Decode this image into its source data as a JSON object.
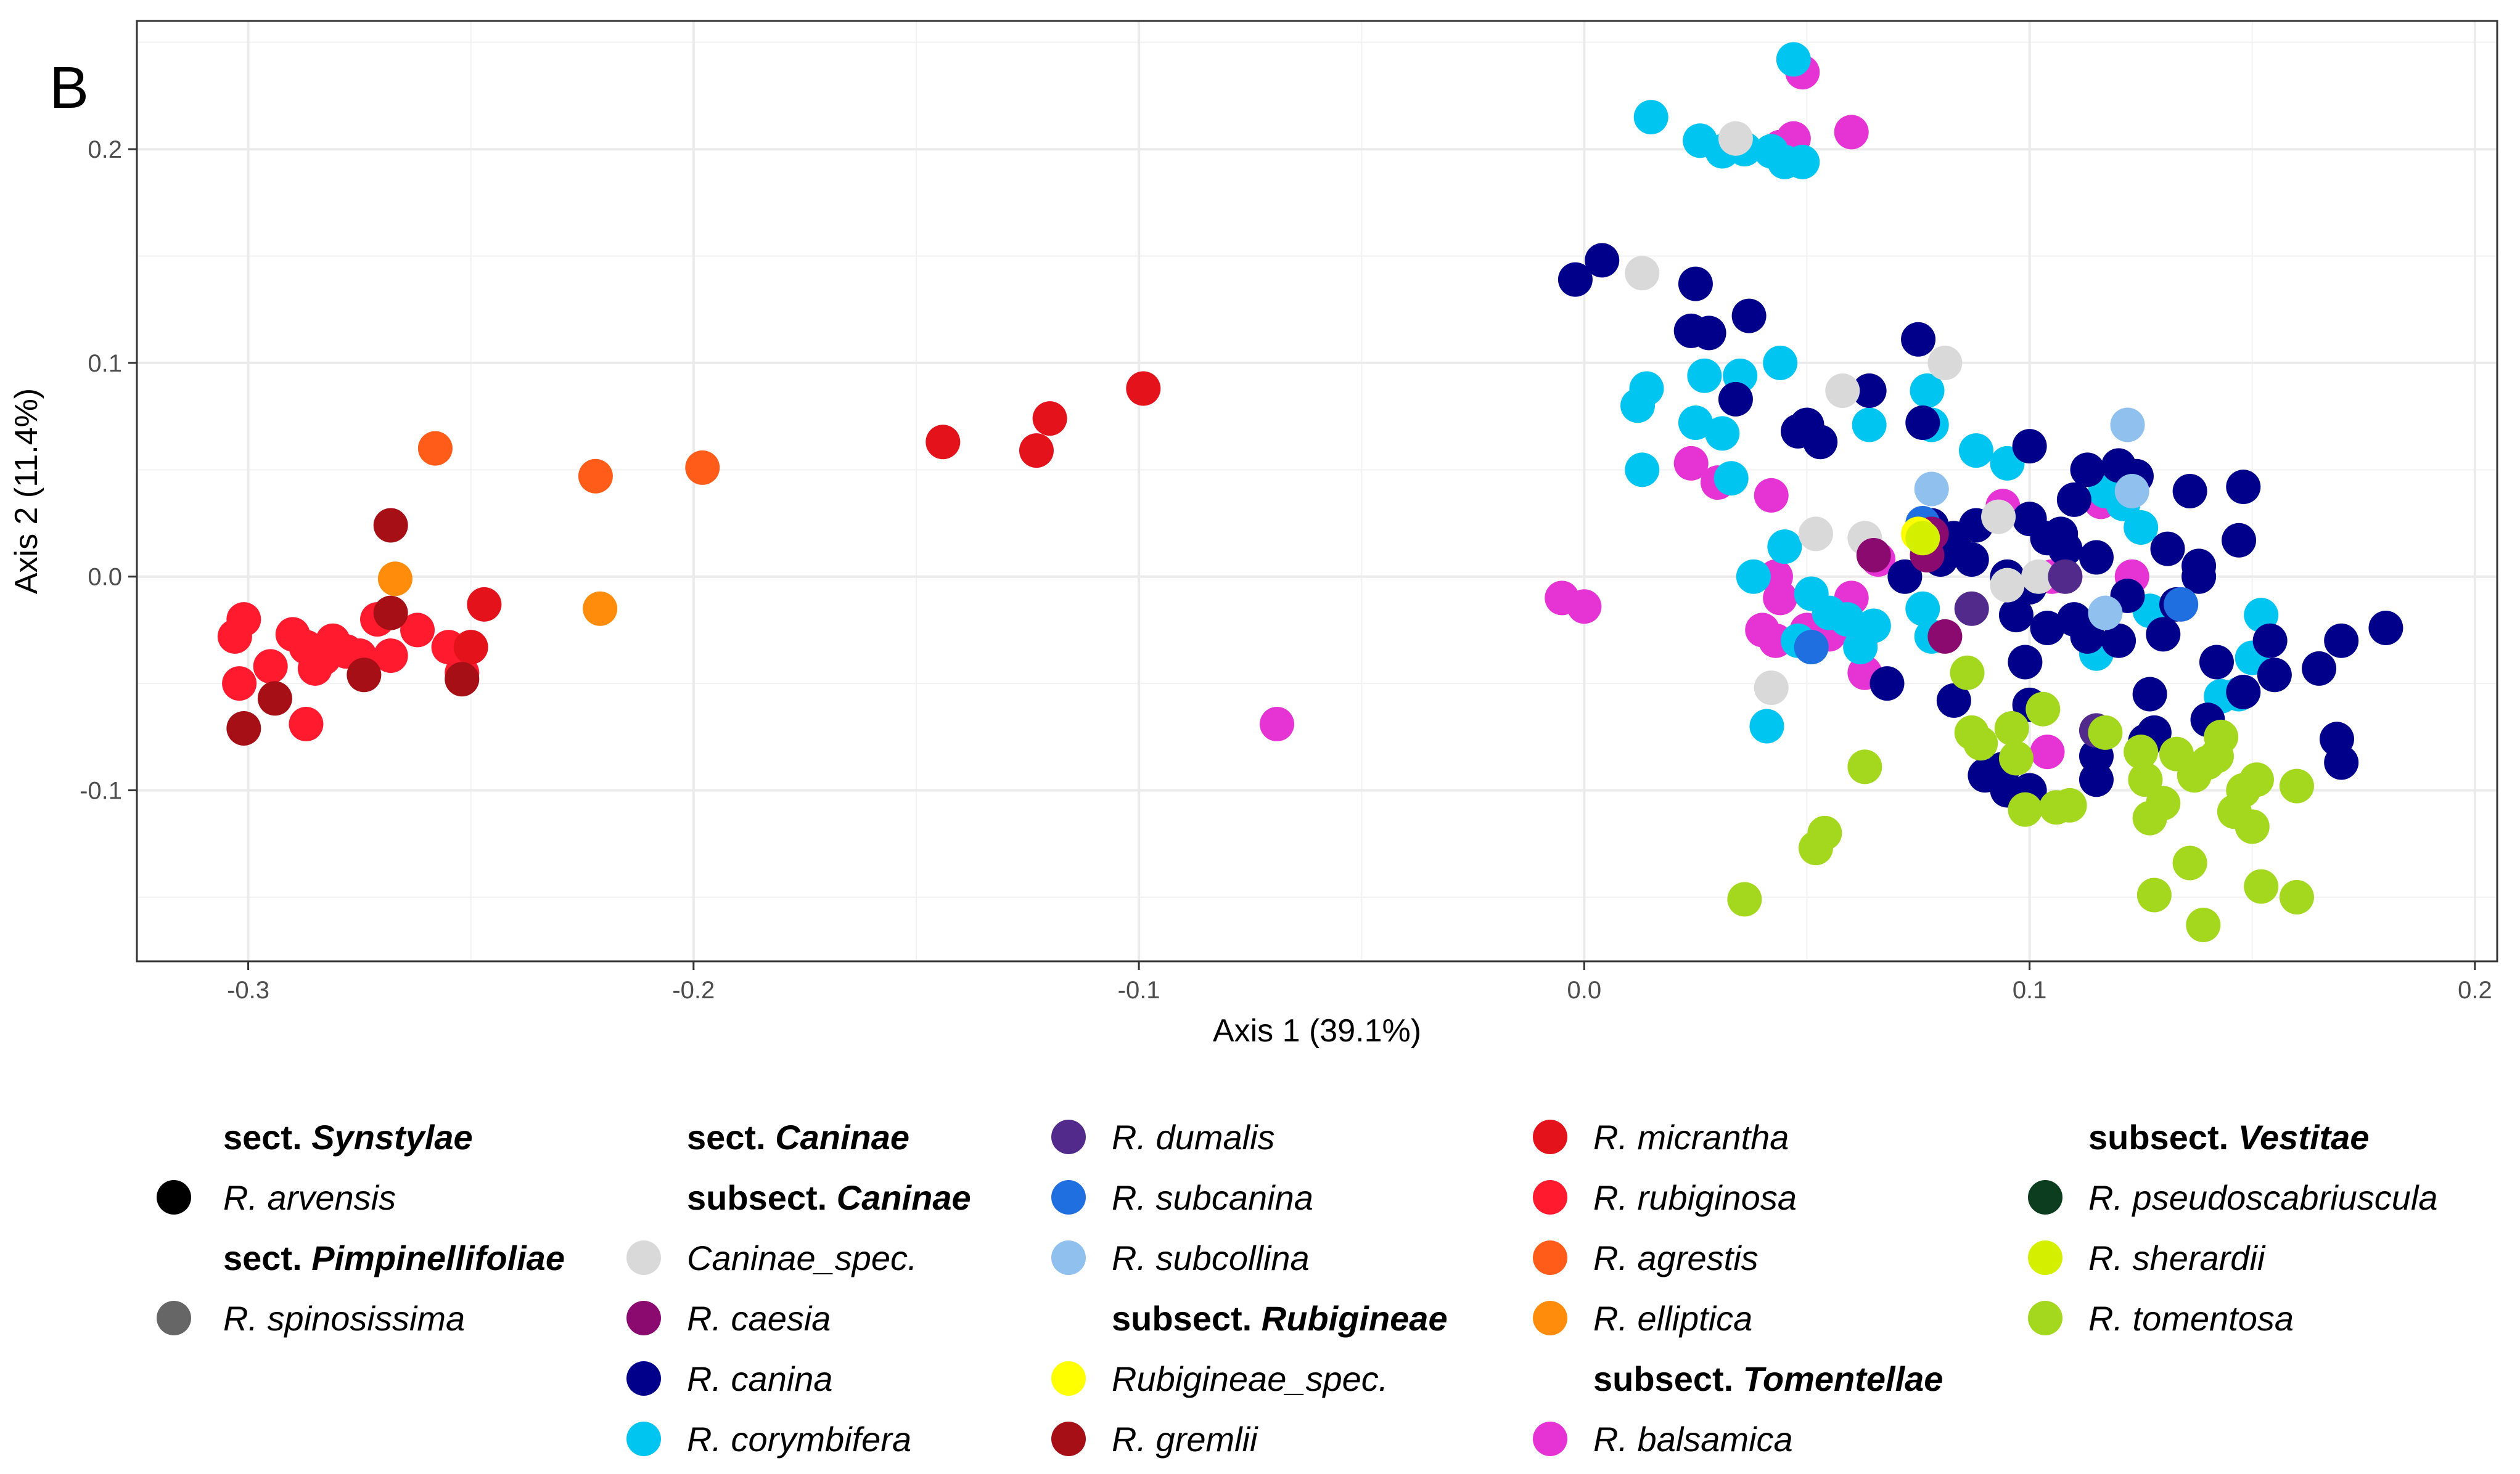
{
  "panel_label": "B",
  "chart_data": {
    "type": "scatter",
    "xlabel": "Axis 1 (39.1%)",
    "ylabel": "Axis 2 (11.4%)",
    "xlim": [
      -0.325,
      0.205
    ],
    "ylim": [
      -0.18,
      0.26
    ],
    "xticks": [
      -0.3,
      -0.2,
      -0.1,
      0.0,
      0.1,
      0.2
    ],
    "xtick_labels": [
      "-0.3",
      "-0.2",
      "-0.1",
      "0.0",
      "0.1",
      "0.2"
    ],
    "yticks": [
      -0.1,
      0.0,
      0.1,
      0.2
    ],
    "ytick_labels": [
      "-0.1",
      "0.0",
      "0.1",
      "0.2"
    ],
    "grid": true,
    "legend_position": "bottom",
    "legend": [
      {
        "kind": "header",
        "prefix": "sect.",
        "name": "Synstylae"
      },
      {
        "kind": "item",
        "label": "R. arvensis",
        "color": "#000000"
      },
      {
        "kind": "header",
        "prefix": "sect.",
        "name": "Pimpinellifoliae"
      },
      {
        "kind": "item",
        "label": "R. spinosissima",
        "color": "#666666"
      },
      {
        "kind": "header",
        "prefix": "sect.",
        "name": "Caninae"
      },
      {
        "kind": "header",
        "prefix": "subsect.",
        "name": "Caninae"
      },
      {
        "kind": "item",
        "label": "Caninae_spec.",
        "color": "#d9d9d9"
      },
      {
        "kind": "item",
        "label": "R. caesia",
        "color": "#8b0a6f"
      },
      {
        "kind": "item",
        "label": "R. canina",
        "color": "#00008b"
      },
      {
        "kind": "item",
        "label": "R. corymbifera",
        "color": "#00c5f0"
      },
      {
        "kind": "item",
        "label": "R. dumalis",
        "color": "#512a8c"
      },
      {
        "kind": "item",
        "label": "R. subcanina",
        "color": "#1f6fe0"
      },
      {
        "kind": "item",
        "label": "R. subcollina",
        "color": "#8fc0ee"
      },
      {
        "kind": "header",
        "prefix": "subsect.",
        "name": "Rubigineae"
      },
      {
        "kind": "item",
        "label": "Rubigineae_spec.",
        "color": "#ffff00"
      },
      {
        "kind": "item",
        "label": "R. gremlii",
        "color": "#a50f15"
      },
      {
        "kind": "item",
        "label": "R. micrantha",
        "color": "#e3121b"
      },
      {
        "kind": "item",
        "label": "R. rubiginosa",
        "color": "#ff1a2e"
      },
      {
        "kind": "item",
        "label": "R. agrestis",
        "color": "#ff5c1a"
      },
      {
        "kind": "item",
        "label": "R. elliptica",
        "color": "#ff8c0a"
      },
      {
        "kind": "header",
        "prefix": "subsect.",
        "name": "Tomentellae"
      },
      {
        "kind": "item",
        "label": "R. balsamica",
        "color": "#e633d4"
      },
      {
        "kind": "header",
        "prefix": "subsect.",
        "name": "Vestitae"
      },
      {
        "kind": "item",
        "label": "R. pseudoscabriuscula",
        "color": "#0b3d1e"
      },
      {
        "kind": "item",
        "label": "R. sherardii",
        "color": "#d4f000"
      },
      {
        "kind": "item",
        "label": "R. tomentosa",
        "color": "#a3d81e"
      }
    ],
    "series": [
      {
        "name": "R. rubiginosa",
        "color": "#ff1a2e",
        "points": [
          [
            -0.301,
            -0.02
          ],
          [
            -0.303,
            -0.028
          ],
          [
            -0.302,
            -0.05
          ],
          [
            -0.295,
            -0.042
          ],
          [
            -0.29,
            -0.027
          ],
          [
            -0.287,
            -0.033
          ],
          [
            -0.285,
            -0.043
          ],
          [
            -0.283,
            -0.038
          ],
          [
            -0.281,
            -0.03
          ],
          [
            -0.278,
            -0.035
          ],
          [
            -0.275,
            -0.037
          ],
          [
            -0.271,
            -0.02
          ],
          [
            -0.268,
            -0.037
          ],
          [
            -0.262,
            -0.025
          ],
          [
            -0.255,
            -0.033
          ],
          [
            -0.252,
            -0.045
          ],
          [
            -0.287,
            -0.069
          ]
        ]
      },
      {
        "name": "R. micrantha",
        "color": "#e3121b",
        "points": [
          [
            -0.247,
            -0.013
          ],
          [
            -0.144,
            0.063
          ],
          [
            -0.12,
            0.074
          ],
          [
            -0.123,
            0.059
          ],
          [
            -0.099,
            0.088
          ],
          [
            -0.25,
            -0.033
          ]
        ]
      },
      {
        "name": "R. gremlii",
        "color": "#a50f15",
        "points": [
          [
            -0.268,
            0.024
          ],
          [
            -0.268,
            -0.017
          ],
          [
            -0.274,
            -0.046
          ],
          [
            -0.294,
            -0.057
          ],
          [
            -0.301,
            -0.071
          ],
          [
            -0.252,
            -0.048
          ]
        ]
      },
      {
        "name": "R. agrestis",
        "color": "#ff5c1a",
        "points": [
          [
            -0.258,
            0.06
          ],
          [
            -0.222,
            0.047
          ],
          [
            -0.198,
            0.051
          ]
        ]
      },
      {
        "name": "R. elliptica",
        "color": "#ff8c0a",
        "points": [
          [
            -0.267,
            -0.001
          ],
          [
            -0.221,
            -0.015
          ]
        ]
      },
      {
        "name": "R. balsamica",
        "color": "#e633d4",
        "points": [
          [
            -0.069,
            -0.069
          ],
          [
            -0.005,
            -0.01
          ],
          [
            0.0,
            -0.014
          ],
          [
            0.049,
            0.236
          ],
          [
            0.06,
            0.208
          ],
          [
            0.044,
            0.201
          ],
          [
            0.047,
            0.205
          ],
          [
            0.024,
            0.053
          ],
          [
            0.03,
            0.044
          ],
          [
            0.042,
            0.038
          ],
          [
            0.043,
            0.0
          ],
          [
            0.044,
            -0.01
          ],
          [
            0.04,
            -0.025
          ],
          [
            0.043,
            -0.03
          ],
          [
            0.05,
            -0.025
          ],
          [
            0.055,
            -0.027
          ],
          [
            0.06,
            -0.01
          ],
          [
            0.062,
            -0.03
          ],
          [
            0.063,
            -0.045
          ],
          [
            0.066,
            0.008
          ],
          [
            0.094,
            0.033
          ],
          [
            0.105,
            0.0
          ],
          [
            0.123,
            0.0
          ],
          [
            0.116,
            0.035
          ],
          [
            0.104,
            -0.082
          ]
        ]
      },
      {
        "name": "R. corymbifera",
        "color": "#00c5f0",
        "points": [
          [
            0.047,
            0.242
          ],
          [
            0.015,
            0.215
          ],
          [
            0.026,
            0.204
          ],
          [
            0.031,
            0.199
          ],
          [
            0.036,
            0.2
          ],
          [
            0.042,
            0.199
          ],
          [
            0.045,
            0.194
          ],
          [
            0.049,
            0.194
          ],
          [
            0.012,
            0.08
          ],
          [
            0.014,
            0.088
          ],
          [
            0.027,
            0.094
          ],
          [
            0.035,
            0.094
          ],
          [
            0.044,
            0.1
          ],
          [
            0.025,
            0.072
          ],
          [
            0.031,
            0.067
          ],
          [
            0.013,
            0.05
          ],
          [
            0.033,
            0.046
          ],
          [
            0.064,
            0.071
          ],
          [
            0.077,
            0.087
          ],
          [
            0.078,
            0.071
          ],
          [
            0.088,
            0.059
          ],
          [
            0.095,
            0.053
          ],
          [
            0.117,
            0.04
          ],
          [
            0.121,
            0.034
          ],
          [
            0.125,
            0.023
          ],
          [
            0.045,
            0.014
          ],
          [
            0.038,
            0.0
          ],
          [
            0.051,
            -0.008
          ],
          [
            0.055,
            -0.017
          ],
          [
            0.059,
            -0.02
          ],
          [
            0.065,
            -0.023
          ],
          [
            0.048,
            -0.03
          ],
          [
            0.062,
            -0.033
          ],
          [
            0.041,
            -0.07
          ],
          [
            0.076,
            -0.015
          ],
          [
            0.078,
            -0.028
          ],
          [
            0.115,
            -0.036
          ],
          [
            0.127,
            -0.016
          ],
          [
            0.143,
            -0.056
          ],
          [
            0.147,
            -0.055
          ],
          [
            0.15,
            -0.038
          ],
          [
            0.152,
            -0.018
          ]
        ]
      },
      {
        "name": "R. canina",
        "color": "#00008b",
        "points": [
          [
            -0.002,
            0.139
          ],
          [
            0.004,
            0.148
          ],
          [
            0.025,
            0.137
          ],
          [
            0.024,
            0.115
          ],
          [
            0.028,
            0.114
          ],
          [
            0.037,
            0.122
          ],
          [
            0.034,
            0.083
          ],
          [
            0.048,
            0.068
          ],
          [
            0.05,
            0.071
          ],
          [
            0.053,
            0.063
          ],
          [
            0.064,
            0.087
          ],
          [
            0.075,
            0.111
          ],
          [
            0.076,
            0.072
          ],
          [
            0.1,
            0.061
          ],
          [
            0.113,
            0.05
          ],
          [
            0.11,
            0.036
          ],
          [
            0.12,
            0.052
          ],
          [
            0.124,
            0.047
          ],
          [
            0.136,
            0.04
          ],
          [
            0.148,
            0.042
          ],
          [
            0.147,
            0.017
          ],
          [
            0.131,
            0.013
          ],
          [
            0.138,
            0.005
          ],
          [
            0.138,
            0.0
          ],
          [
            0.133,
            -0.013
          ],
          [
            0.13,
            -0.027
          ],
          [
            0.122,
            -0.009
          ],
          [
            0.115,
            0.009
          ],
          [
            0.107,
            0.02
          ],
          [
            0.1,
            0.027
          ],
          [
            0.088,
            0.024
          ],
          [
            0.083,
            0.018
          ],
          [
            0.08,
            0.008
          ],
          [
            0.072,
            0.0
          ],
          [
            0.087,
            0.008
          ],
          [
            0.095,
            0.0
          ],
          [
            0.1,
            -0.005
          ],
          [
            0.104,
            0.018
          ],
          [
            0.108,
            0.013
          ],
          [
            0.097,
            -0.018
          ],
          [
            0.104,
            -0.024
          ],
          [
            0.11,
            -0.02
          ],
          [
            0.113,
            -0.028
          ],
          [
            0.12,
            -0.03
          ],
          [
            0.127,
            -0.055
          ],
          [
            0.142,
            -0.04
          ],
          [
            0.148,
            -0.054
          ],
          [
            0.154,
            -0.03
          ],
          [
            0.155,
            -0.046
          ],
          [
            0.165,
            -0.043
          ],
          [
            0.17,
            -0.03
          ],
          [
            0.18,
            -0.024
          ],
          [
            0.169,
            -0.076
          ],
          [
            0.17,
            -0.087
          ],
          [
            0.14,
            -0.067
          ],
          [
            0.128,
            -0.073
          ],
          [
            0.126,
            -0.077
          ],
          [
            0.115,
            -0.084
          ],
          [
            0.115,
            -0.095
          ],
          [
            0.1,
            -0.1
          ],
          [
            0.094,
            -0.09
          ],
          [
            0.095,
            -0.1
          ],
          [
            0.09,
            -0.093
          ],
          [
            0.083,
            -0.058
          ],
          [
            0.099,
            -0.04
          ],
          [
            0.1,
            -0.06
          ],
          [
            0.068,
            -0.05
          ],
          [
            0.078,
            0.024
          ]
        ]
      },
      {
        "name": "Caninae_spec.",
        "color": "#d9d9d9",
        "points": [
          [
            0.034,
            0.205
          ],
          [
            0.013,
            0.142
          ],
          [
            0.058,
            0.087
          ],
          [
            0.081,
            0.1
          ],
          [
            0.063,
            0.018
          ],
          [
            0.052,
            0.02
          ],
          [
            0.042,
            -0.052
          ],
          [
            0.093,
            0.028
          ],
          [
            0.095,
            -0.004
          ],
          [
            0.102,
            0.0
          ]
        ]
      },
      {
        "name": "R. subcollina",
        "color": "#8fc0ee",
        "points": [
          [
            0.122,
            0.071
          ],
          [
            0.078,
            0.041
          ],
          [
            0.117,
            -0.017
          ],
          [
            0.123,
            0.04
          ]
        ]
      },
      {
        "name": "R. subcanina",
        "color": "#1f6fe0",
        "points": [
          [
            0.051,
            -0.033
          ],
          [
            0.076,
            0.025
          ],
          [
            0.134,
            -0.013
          ]
        ]
      },
      {
        "name": "R. caesia",
        "color": "#8b0a6f",
        "points": [
          [
            0.065,
            0.01
          ],
          [
            0.077,
            0.01
          ],
          [
            0.078,
            0.02
          ],
          [
            0.081,
            -0.028
          ]
        ]
      },
      {
        "name": "R. dumalis",
        "color": "#512a8c",
        "points": [
          [
            0.087,
            -0.015
          ],
          [
            0.108,
            0.0
          ],
          [
            0.115,
            -0.072
          ]
        ]
      },
      {
        "name": "Rubigineae_spec.",
        "color": "#ffff00",
        "points": [
          [
            0.075,
            0.02
          ]
        ]
      },
      {
        "name": "R. sherardii",
        "color": "#d4f000",
        "points": [
          [
            0.076,
            0.018
          ]
        ]
      },
      {
        "name": "R. tomentosa",
        "color": "#a3d81e",
        "points": [
          [
            0.036,
            -0.151
          ],
          [
            0.052,
            -0.127
          ],
          [
            0.054,
            -0.12
          ],
          [
            0.063,
            -0.089
          ],
          [
            0.086,
            -0.045
          ],
          [
            0.087,
            -0.073
          ],
          [
            0.089,
            -0.078
          ],
          [
            0.096,
            -0.071
          ],
          [
            0.097,
            -0.085
          ],
          [
            0.099,
            -0.109
          ],
          [
            0.103,
            -0.062
          ],
          [
            0.106,
            -0.108
          ],
          [
            0.109,
            -0.107
          ],
          [
            0.117,
            -0.073
          ],
          [
            0.125,
            -0.082
          ],
          [
            0.126,
            -0.095
          ],
          [
            0.127,
            -0.113
          ],
          [
            0.13,
            -0.106
          ],
          [
            0.133,
            -0.083
          ],
          [
            0.136,
            -0.134
          ],
          [
            0.137,
            -0.093
          ],
          [
            0.14,
            -0.087
          ],
          [
            0.142,
            -0.084
          ],
          [
            0.143,
            -0.075
          ],
          [
            0.146,
            -0.11
          ],
          [
            0.148,
            -0.1
          ],
          [
            0.15,
            -0.117
          ],
          [
            0.151,
            -0.095
          ],
          [
            0.152,
            -0.145
          ],
          [
            0.16,
            -0.15
          ],
          [
            0.16,
            -0.098
          ],
          [
            0.139,
            -0.163
          ],
          [
            0.128,
            -0.149
          ]
        ]
      }
    ]
  }
}
